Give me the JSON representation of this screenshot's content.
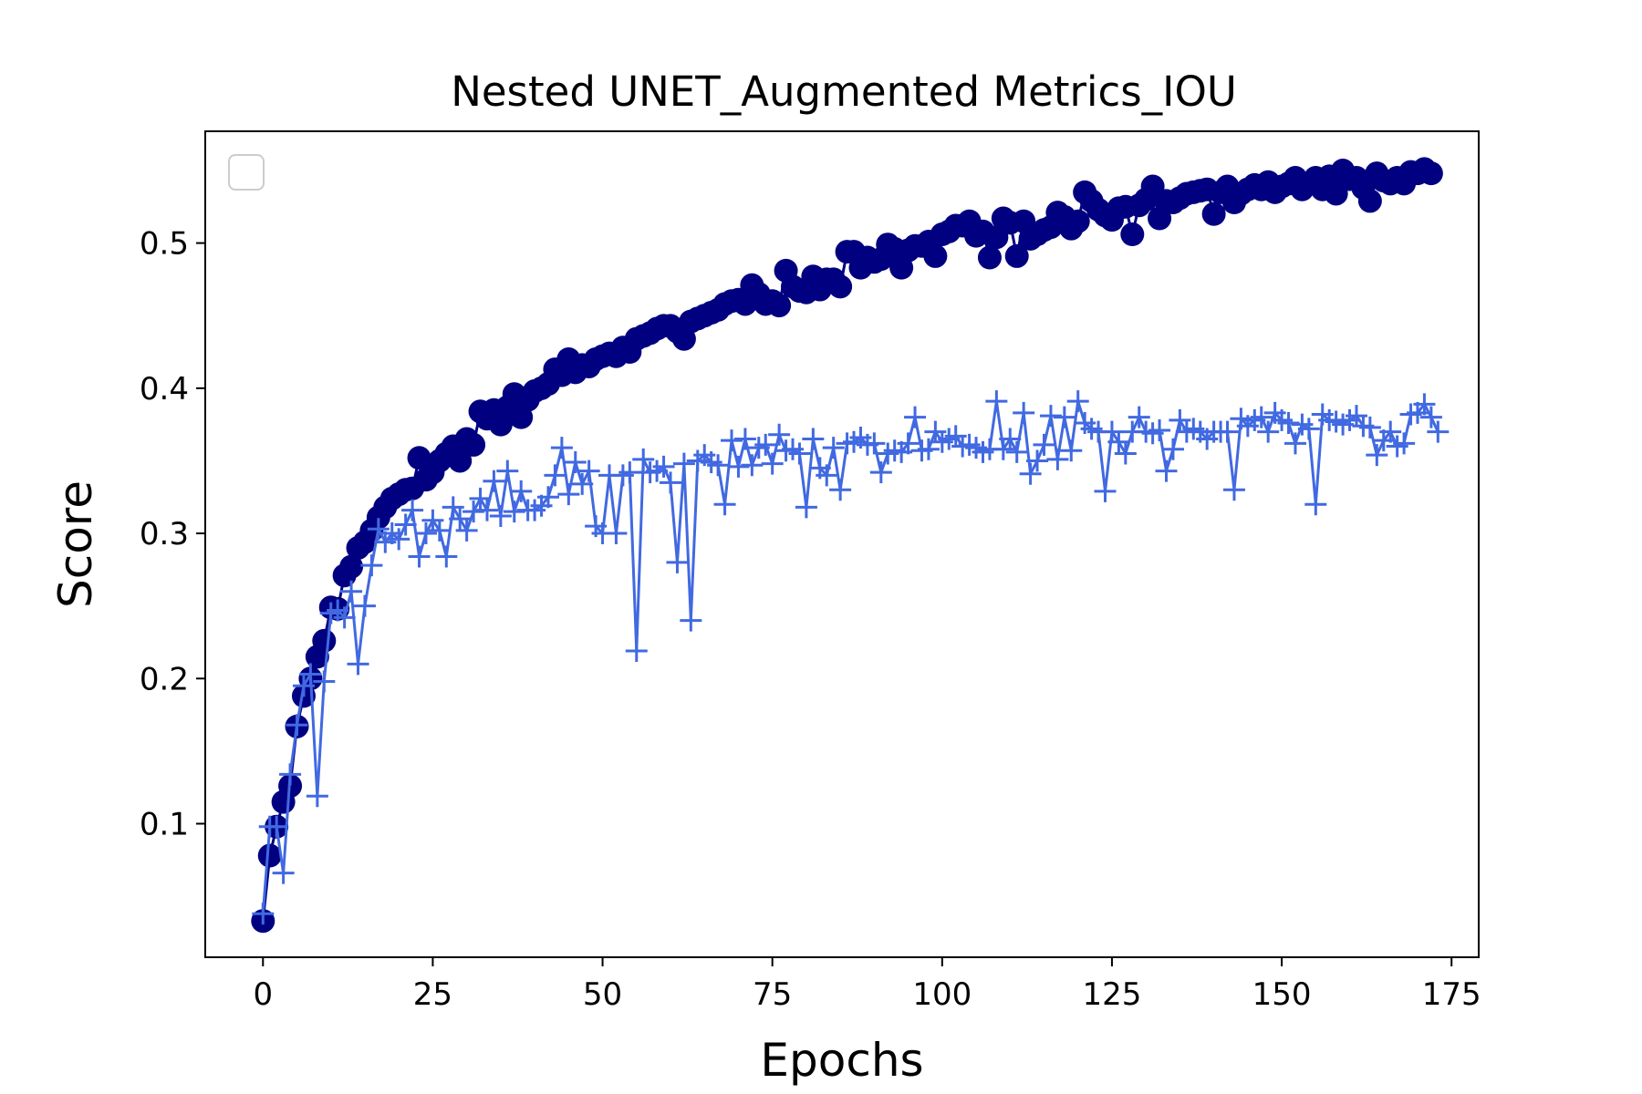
{
  "chart_data": {
    "type": "line",
    "title": "Nested UNET_Augmented Metrics_IOU",
    "xlabel": "Epochs",
    "ylabel": "Score",
    "xlim": [
      -8.5,
      179
    ],
    "ylim": [
      0.008,
      0.577
    ],
    "xticks": [
      0,
      25,
      50,
      75,
      100,
      125,
      150,
      175
    ],
    "yticks": [
      0.1,
      0.2,
      0.3,
      0.4,
      0.5
    ],
    "xtick_labels": [
      "0",
      "25",
      "50",
      "75",
      "100",
      "125",
      "150",
      "175"
    ],
    "ytick_labels": [
      "0.1",
      "0.2",
      "0.3",
      "0.4",
      "0.5"
    ],
    "grid": false,
    "legend": {
      "placement": "upper-left",
      "entries": []
    },
    "series": [
      {
        "marker": "circle",
        "color": "#000080",
        "values": [
          0.033,
          0.078,
          0.098,
          0.115,
          0.126,
          0.167,
          0.188,
          0.2,
          0.215,
          0.226,
          0.249,
          0.248,
          0.271,
          0.277,
          0.29,
          0.294,
          0.302,
          0.311,
          0.318,
          0.324,
          0.327,
          0.33,
          0.331,
          0.352,
          0.337,
          0.342,
          0.35,
          0.355,
          0.36,
          0.35,
          0.365,
          0.361,
          0.384,
          0.379,
          0.385,
          0.375,
          0.387,
          0.396,
          0.38,
          0.392,
          0.398,
          0.4,
          0.403,
          0.413,
          0.409,
          0.42,
          0.411,
          0.416,
          0.415,
          0.42,
          0.422,
          0.424,
          0.422,
          0.428,
          0.425,
          0.434,
          0.436,
          0.438,
          0.441,
          0.443,
          0.443,
          0.439,
          0.434,
          0.446,
          0.448,
          0.45,
          0.452,
          0.454,
          0.458,
          0.46,
          0.461,
          0.458,
          0.471,
          0.465,
          0.458,
          0.46,
          0.457,
          0.481,
          0.47,
          0.467,
          0.466,
          0.477,
          0.468,
          0.475,
          0.475,
          0.47,
          0.494,
          0.494,
          0.483,
          0.49,
          0.487,
          0.489,
          0.499,
          0.496,
          0.483,
          0.495,
          0.498,
          0.498,
          0.501,
          0.491,
          0.506,
          0.508,
          0.512,
          0.512,
          0.515,
          0.505,
          0.508,
          0.49,
          0.504,
          0.517,
          0.514,
          0.491,
          0.515,
          0.503,
          0.506,
          0.509,
          0.511,
          0.521,
          0.518,
          0.51,
          0.515,
          0.535,
          0.529,
          0.523,
          0.519,
          0.516,
          0.524,
          0.525,
          0.506,
          0.526,
          0.53,
          0.539,
          0.517,
          0.529,
          0.528,
          0.531,
          0.534,
          0.535,
          0.536,
          0.537,
          0.52,
          0.535,
          0.539,
          0.528,
          0.534,
          0.537,
          0.54,
          0.537,
          0.542,
          0.535,
          0.539,
          0.541,
          0.545,
          0.537,
          0.541,
          0.545,
          0.537,
          0.546,
          0.534,
          0.55,
          0.544,
          0.545,
          0.538,
          0.529,
          0.548,
          0.543,
          0.541,
          0.545,
          0.541,
          0.549,
          0.548,
          0.551,
          0.548
        ]
      },
      {
        "marker": "plus",
        "color": "#4169e1",
        "values": [
          0.038,
          0.098,
          0.098,
          0.066,
          0.134,
          0.168,
          0.195,
          0.203,
          0.119,
          0.198,
          0.245,
          0.247,
          0.242,
          0.26,
          0.21,
          0.25,
          0.278,
          0.303,
          0.294,
          0.3,
          0.296,
          0.306,
          0.316,
          0.284,
          0.3,
          0.309,
          0.302,
          0.284,
          0.318,
          0.31,
          0.302,
          0.315,
          0.324,
          0.316,
          0.336,
          0.312,
          0.343,
          0.315,
          0.329,
          0.316,
          0.316,
          0.319,
          0.325,
          0.34,
          0.359,
          0.327,
          0.349,
          0.334,
          0.343,
          0.305,
          0.3,
          0.34,
          0.3,
          0.34,
          0.342,
          0.219,
          0.351,
          0.342,
          0.343,
          0.346,
          0.335,
          0.28,
          0.348,
          0.24,
          0.35,
          0.354,
          0.349,
          0.347,
          0.32,
          0.364,
          0.346,
          0.365,
          0.347,
          0.359,
          0.361,
          0.348,
          0.368,
          0.357,
          0.358,
          0.355,
          0.318,
          0.365,
          0.345,
          0.34,
          0.359,
          0.33,
          0.362,
          0.363,
          0.366,
          0.361,
          0.362,
          0.342,
          0.355,
          0.357,
          0.356,
          0.362,
          0.38,
          0.357,
          0.358,
          0.37,
          0.363,
          0.365,
          0.367,
          0.36,
          0.361,
          0.359,
          0.356,
          0.358,
          0.391,
          0.358,
          0.365,
          0.356,
          0.383,
          0.341,
          0.35,
          0.361,
          0.381,
          0.351,
          0.38,
          0.357,
          0.391,
          0.376,
          0.372,
          0.37,
          0.329,
          0.37,
          0.363,
          0.355,
          0.37,
          0.38,
          0.37,
          0.369,
          0.371,
          0.343,
          0.358,
          0.378,
          0.37,
          0.372,
          0.37,
          0.365,
          0.37,
          0.37,
          0.37,
          0.33,
          0.379,
          0.374,
          0.378,
          0.38,
          0.37,
          0.383,
          0.378,
          0.376,
          0.362,
          0.375,
          0.372,
          0.32,
          0.382,
          0.378,
          0.377,
          0.375,
          0.378,
          0.381,
          0.374,
          0.373,
          0.354,
          0.364,
          0.37,
          0.36,
          0.362,
          0.382,
          0.383,
          0.389,
          0.38,
          0.37
        ]
      }
    ]
  }
}
